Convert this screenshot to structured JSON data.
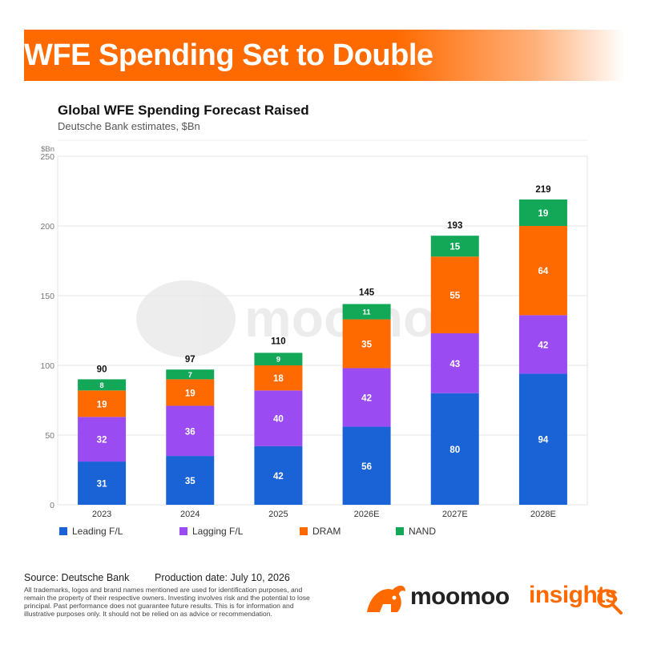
{
  "banner": {
    "title": "WFE Spending Set to Double"
  },
  "footer": {
    "source": "Source: Deutsche Bank",
    "production_date": "Production date: July 10, 2026",
    "disclaimer": "All trademarks, logos and brand names mentioned are used for identification purposes, and remain the property of their respective owners. Investing involves risk and the potential to lose principal. Past performance does not guarantee future results. This is for information and illustrative purposes only. It should not be relied on as advice or recommendation."
  },
  "brand": {
    "name": "moomoo",
    "suffix": "insights",
    "logo_icon": "bull-logo-icon",
    "search_icon": "magnifier-icon",
    "accent": "#ff6a00"
  },
  "watermark": {
    "text": "moomoo"
  },
  "chart_data": {
    "type": "bar",
    "stacked": true,
    "title": "Global WFE Spending Forecast Raised",
    "subtitle": "Deutsche Bank estimates, $Bn",
    "ylabel": "$Bn",
    "ylim": [
      0,
      250
    ],
    "yticks": [
      0,
      50,
      100,
      150,
      200,
      250
    ],
    "grid": true,
    "legend_position": "bottom",
    "categories": [
      "2023",
      "2024",
      "2025",
      "2026E",
      "2027E",
      "2028E"
    ],
    "series": [
      {
        "name": "Leading F/L",
        "color": "#1a63d6",
        "values": [
          31,
          35,
          42,
          56,
          80,
          94
        ]
      },
      {
        "name": "Lagging F/L",
        "color": "#9a4cf2",
        "values": [
          32,
          36,
          40,
          42,
          43,
          42
        ]
      },
      {
        "name": "DRAM",
        "color": "#ff6a00",
        "values": [
          19,
          19,
          18,
          35,
          55,
          64
        ]
      },
      {
        "name": "NAND",
        "color": "#12a858",
        "values": [
          8,
          7,
          9,
          11,
          15,
          19
        ]
      }
    ],
    "totals": [
      90,
      97,
      110,
      145,
      193,
      219
    ]
  }
}
